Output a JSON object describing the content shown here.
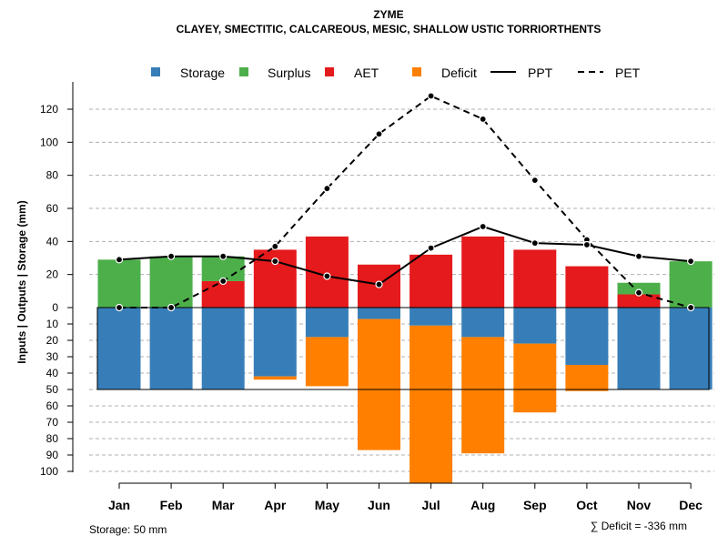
{
  "chart_data": {
    "type": "bar",
    "title": "ZYME",
    "subtitle": "CLAYEY, SMECTITIC, CALCAREOUS, MESIC, SHALLOW USTIC TORRIORTHENTS",
    "ylabel": "Inputs | Outputs | Storage     (mm)",
    "categories": [
      "Jan",
      "Feb",
      "Mar",
      "Apr",
      "May",
      "Jun",
      "Jul",
      "Aug",
      "Sep",
      "Oct",
      "Nov",
      "Dec"
    ],
    "ylim": [
      -107,
      130
    ],
    "yticks_upper": [
      0,
      20,
      40,
      60,
      80,
      100,
      120
    ],
    "yticks_lower": [
      10,
      20,
      30,
      40,
      50,
      60,
      70,
      80,
      90,
      100
    ],
    "storage_capacity": 50,
    "series": [
      {
        "name": "Storage",
        "color": "#377EB8",
        "values": [
          50,
          50,
          50,
          42,
          18,
          7,
          11,
          18,
          22,
          35,
          50,
          50
        ]
      },
      {
        "name": "Surplus",
        "color": "#4DAF4A",
        "values": [
          29,
          31,
          15,
          0,
          0,
          0,
          0,
          0,
          0,
          0,
          7,
          28
        ]
      },
      {
        "name": "AET",
        "color": "#E41A1C",
        "values": [
          0,
          0,
          16,
          35,
          43,
          26,
          32,
          43,
          35,
          25,
          8,
          0
        ]
      },
      {
        "name": "Deficit",
        "color": "#FF7F00",
        "values": [
          0,
          0,
          0,
          2,
          30,
          80,
          96,
          71,
          42,
          16,
          0,
          0
        ]
      },
      {
        "name": "PPT",
        "color": "#000000",
        "style": "solid",
        "values": [
          29,
          31,
          31,
          28,
          19,
          14,
          36,
          49,
          39,
          38,
          31,
          28
        ]
      },
      {
        "name": "PET",
        "color": "#000000",
        "style": "dashed",
        "values": [
          0,
          0,
          16,
          37,
          72,
          105,
          128,
          114,
          77,
          41,
          9,
          0
        ]
      }
    ],
    "legend": [
      "Storage",
      "Surplus",
      "AET",
      "Deficit",
      "PPT",
      "PET"
    ],
    "annotations": {
      "storage": "Storage: 50 mm",
      "deficit": "∑ Deficit = -336 mm"
    },
    "grid": true,
    "legend_position": "top"
  }
}
